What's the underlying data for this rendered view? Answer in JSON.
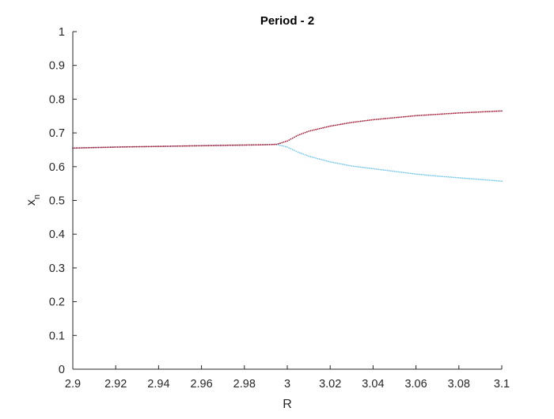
{
  "chart_data": {
    "type": "scatter",
    "title": "Period - 2",
    "xlabel": "R",
    "ylabel_base": "x",
    "ylabel_subscript": "n",
    "xlim": [
      2.9,
      3.1
    ],
    "ylim": [
      0,
      1
    ],
    "x_ticks": [
      2.9,
      2.92,
      2.94,
      2.96,
      2.98,
      3.0,
      3.02,
      3.04,
      3.06,
      3.08,
      3.1
    ],
    "x_tick_labels": [
      "2.9",
      "2.92",
      "2.94",
      "2.96",
      "2.98",
      "3",
      "3.02",
      "3.04",
      "3.06",
      "3.08",
      "3.1"
    ],
    "y_ticks": [
      0,
      0.1,
      0.2,
      0.3,
      0.4,
      0.5,
      0.6,
      0.7,
      0.8,
      0.9,
      1.0
    ],
    "y_tick_labels": [
      "0",
      "0.1",
      "0.2",
      "0.3",
      "0.4",
      "0.5",
      "0.6",
      "0.7",
      "0.8",
      "0.9",
      "1"
    ],
    "grid": false,
    "box": "left-bottom",
    "series": [
      {
        "color": "#77C8EE",
        "x": [
          2.9,
          2.92,
          2.94,
          2.96,
          2.98,
          2.99,
          2.995,
          3.0,
          3.005,
          3.01,
          3.02,
          3.03,
          3.04,
          3.05,
          3.06,
          3.07,
          3.08,
          3.09,
          3.1
        ],
        "y": [
          0.655,
          0.658,
          0.66,
          0.662,
          0.664,
          0.665,
          0.666,
          0.658,
          0.643,
          0.631,
          0.614,
          0.602,
          0.594,
          0.586,
          0.578,
          0.572,
          0.567,
          0.562,
          0.557
        ]
      },
      {
        "color": "#A2142F",
        "x": [
          2.9,
          2.92,
          2.94,
          2.96,
          2.98,
          2.99,
          2.995,
          3.0,
          3.005,
          3.01,
          3.02,
          3.03,
          3.04,
          3.05,
          3.06,
          3.07,
          3.08,
          3.09,
          3.1
        ],
        "y": [
          0.655,
          0.658,
          0.66,
          0.662,
          0.664,
          0.665,
          0.666,
          0.676,
          0.693,
          0.705,
          0.72,
          0.731,
          0.739,
          0.745,
          0.751,
          0.755,
          0.759,
          0.762,
          0.765
        ]
      }
    ]
  }
}
